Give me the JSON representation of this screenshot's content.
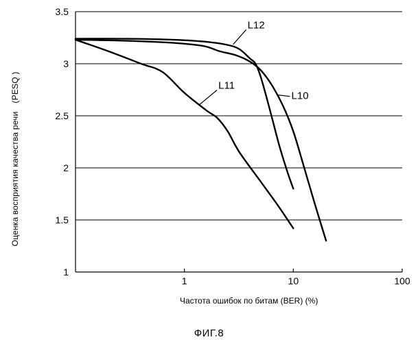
{
  "figure": {
    "caption": "ФИГ.8"
  },
  "chart_data": {
    "type": "line",
    "xlabel": "Частота ошибок по битам (BER) (%)",
    "ylabel": "Оценка восприятия качества речи",
    "ylabel_unit": "(PESQ )",
    "xscale": "log",
    "xlim": [
      0.1,
      100
    ],
    "ylim": [
      1,
      3.5
    ],
    "xticks": [
      {
        "value": 1,
        "label": "1"
      },
      {
        "value": 10,
        "label": "10"
      },
      {
        "value": 100,
        "label": "100"
      }
    ],
    "yticks": [
      {
        "value": 1,
        "label": "1"
      },
      {
        "value": 1.5,
        "label": "1.5"
      },
      {
        "value": 2,
        "label": "2"
      },
      {
        "value": 2.5,
        "label": "2.5"
      },
      {
        "value": 3,
        "label": "3"
      },
      {
        "value": 3.5,
        "label": "3.5"
      }
    ],
    "grid": "horizontal",
    "series": [
      {
        "name": "L10",
        "points": [
          [
            0.1,
            3.23
          ],
          [
            0.3,
            3.22
          ],
          [
            0.8,
            3.2
          ],
          [
            1.5,
            3.17
          ],
          [
            2.1,
            3.12
          ],
          [
            3.0,
            3.08
          ],
          [
            4.0,
            3.02
          ],
          [
            5.0,
            2.94
          ],
          [
            6.3,
            2.8
          ],
          [
            8.0,
            2.6
          ],
          [
            10.0,
            2.35
          ],
          [
            12.6,
            2.0
          ],
          [
            15.8,
            1.65
          ],
          [
            20.0,
            1.3
          ]
        ]
      },
      {
        "name": "L11",
        "points": [
          [
            0.1,
            3.23
          ],
          [
            0.2,
            3.12
          ],
          [
            0.4,
            3.0
          ],
          [
            0.63,
            2.92
          ],
          [
            1.0,
            2.72
          ],
          [
            1.6,
            2.55
          ],
          [
            2.0,
            2.48
          ],
          [
            2.5,
            2.35
          ],
          [
            3.2,
            2.15
          ],
          [
            5.0,
            1.87
          ],
          [
            7.1,
            1.65
          ],
          [
            10.0,
            1.42
          ]
        ]
      },
      {
        "name": "L12",
        "points": [
          [
            0.1,
            3.24
          ],
          [
            0.3,
            3.24
          ],
          [
            0.8,
            3.23
          ],
          [
            1.6,
            3.21
          ],
          [
            2.5,
            3.18
          ],
          [
            3.2,
            3.14
          ],
          [
            4.0,
            3.05
          ],
          [
            4.5,
            3.0
          ],
          [
            5.0,
            2.88
          ],
          [
            5.6,
            2.7
          ],
          [
            6.3,
            2.5
          ],
          [
            7.5,
            2.2
          ],
          [
            8.9,
            1.95
          ],
          [
            10.0,
            1.8
          ]
        ]
      }
    ],
    "annotations": [
      {
        "text": "L12",
        "x": 3.8,
        "y": 3.34
      },
      {
        "text": "L11",
        "x": 2.05,
        "y": 2.76
      },
      {
        "text": "L10",
        "x": 9.6,
        "y": 2.66
      }
    ]
  }
}
